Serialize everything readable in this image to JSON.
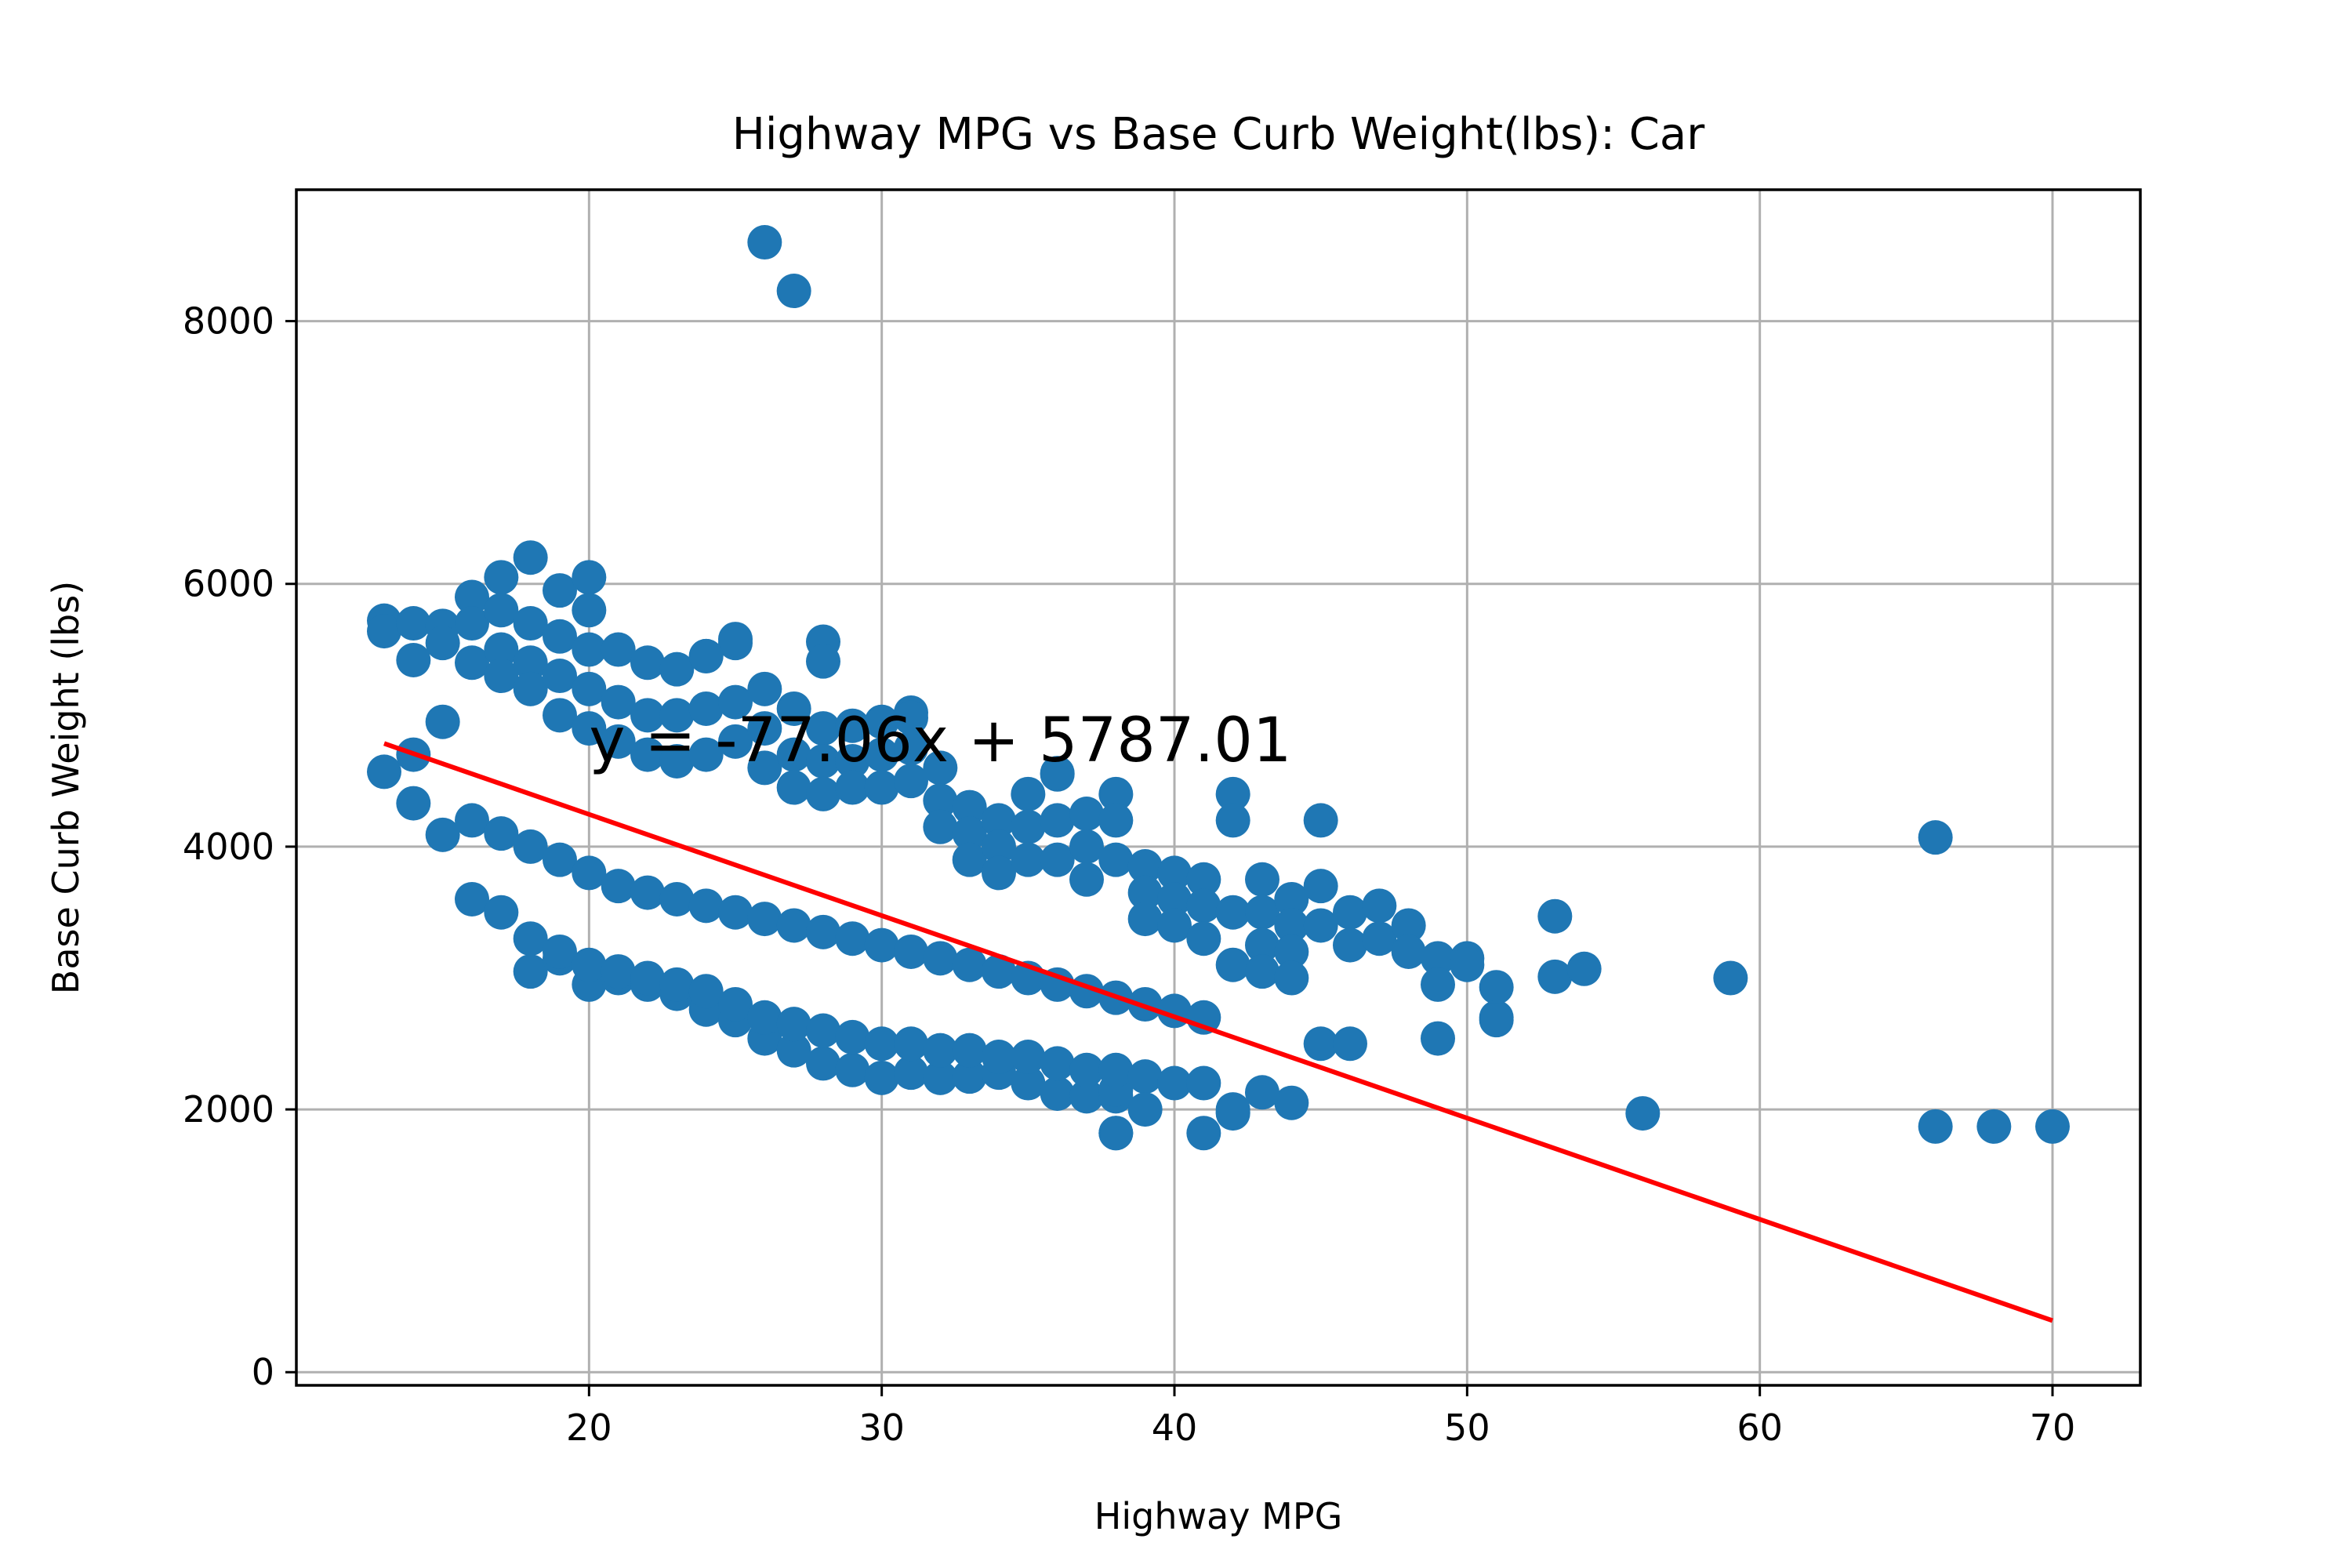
{
  "chart_data": {
    "type": "scatter",
    "title": "Highway MPG vs Base Curb Weight(lbs): Car",
    "xlabel": "Highway MPG",
    "ylabel": "Base Curb Weight (lbs)",
    "xlim": [
      10,
      73
    ],
    "ylim": [
      -100,
      9000
    ],
    "xticks": [
      20,
      30,
      40,
      50,
      60,
      70
    ],
    "yticks": [
      0,
      2000,
      4000,
      6000,
      8000
    ],
    "grid": true,
    "colors": {
      "points": "#1f77b4",
      "fit": "#ff0000"
    },
    "regression": {
      "slope": -77.06,
      "intercept": 5787.01,
      "x_range": [
        13,
        70
      ],
      "label": "y = -77.06x + 5787.01",
      "label_anchor": [
        20,
        4650
      ]
    },
    "series": [
      {
        "name": "Car",
        "x": [
          26,
          27,
          18,
          17,
          19,
          20,
          20,
          13,
          13,
          14,
          14,
          15,
          15,
          16,
          16,
          16,
          17,
          17,
          17,
          18,
          18,
          18,
          19,
          19,
          19,
          20,
          20,
          20,
          21,
          21,
          21,
          22,
          22,
          22,
          23,
          23,
          23,
          24,
          24,
          24,
          25,
          25,
          25,
          26,
          26,
          26,
          27,
          27,
          27,
          28,
          28,
          28,
          29,
          29,
          29,
          30,
          30,
          30,
          31,
          31,
          31,
          32,
          32,
          32,
          33,
          33,
          33,
          34,
          34,
          34,
          35,
          35,
          35,
          36,
          36,
          36,
          37,
          37,
          37,
          38,
          38,
          38,
          39,
          39,
          39,
          40,
          40,
          40,
          41,
          41,
          41,
          42,
          42,
          42,
          43,
          43,
          43,
          44,
          44,
          44,
          45,
          45,
          45,
          46,
          46,
          47,
          47,
          48,
          48,
          49,
          49,
          50,
          51,
          51,
          53,
          53,
          54,
          56,
          59,
          66,
          66,
          68,
          70,
          13,
          14,
          15,
          16,
          18,
          19,
          20,
          21,
          22,
          23,
          24,
          25,
          26,
          27,
          28,
          29,
          30,
          31,
          32,
          33,
          34,
          35,
          36,
          37,
          38,
          38,
          38,
          42,
          42,
          45,
          28,
          28,
          25,
          24,
          17,
          18,
          19,
          20,
          21,
          22,
          23,
          24,
          25,
          26,
          27,
          28,
          29,
          30,
          31,
          32,
          33,
          34,
          35,
          36,
          37,
          38,
          39,
          40,
          41,
          16,
          17,
          18,
          19,
          20,
          21,
          22,
          23,
          24,
          25,
          26,
          27,
          28,
          29,
          30,
          31,
          32,
          33,
          34,
          35,
          36,
          37,
          38,
          39,
          40,
          41,
          42,
          43,
          44,
          38,
          41,
          44,
          43,
          39,
          42,
          46,
          49,
          51,
          50,
          31,
          36,
          15,
          14
        ],
        "y": [
          8600,
          8230,
          6200,
          6050,
          5950,
          6050,
          5800,
          5720,
          5640,
          5700,
          5420,
          5680,
          5550,
          5900,
          5700,
          5400,
          5800,
          5500,
          5300,
          5700,
          5400,
          5200,
          5600,
          5300,
          5000,
          5500,
          5200,
          4900,
          5500,
          5100,
          4800,
          5400,
          5000,
          4700,
          5350,
          5000,
          4650,
          5450,
          5050,
          4700,
          5550,
          5100,
          4800,
          5200,
          4900,
          4600,
          5050,
          4700,
          4450,
          4900,
          4650,
          4400,
          4920,
          4650,
          4450,
          4950,
          4700,
          4450,
          5020,
          4750,
          4500,
          4600,
          4350,
          4150,
          4300,
          4100,
          3900,
          4200,
          4000,
          3800,
          4400,
          4150,
          3900,
          4550,
          4200,
          3900,
          4250,
          4000,
          3750,
          4400,
          4200,
          3900,
          3850,
          3650,
          3450,
          3800,
          3600,
          3400,
          3750,
          3550,
          3300,
          4400,
          4200,
          3500,
          3750,
          3500,
          3250,
          3600,
          3400,
          3200,
          4200,
          3700,
          3400,
          3500,
          3250,
          3550,
          3300,
          3400,
          3200,
          3150,
          2950,
          3150,
          2930,
          2700,
          3470,
          3010,
          3070,
          1970,
          3000,
          4070,
          1870,
          1870,
          1870,
          4570,
          4700,
          4090,
          3600,
          3050,
          3150,
          2950,
          3000,
          2950,
          2880,
          2760,
          2680,
          2540,
          2450,
          2350,
          2300,
          2240,
          2280,
          2240,
          2250,
          2280,
          2200,
          2120,
          2100,
          2100,
          1820,
          2150,
          1980,
          2000,
          2500,
          5560,
          5410,
          5580,
          5450,
          3500,
          3300,
          3200,
          3100,
          3050,
          3000,
          2950,
          2900,
          2800,
          2700,
          2650,
          2600,
          2550,
          2500,
          2500,
          2450,
          2450,
          2400,
          2400,
          2350,
          2300,
          2300,
          2250,
          2200,
          2200,
          4200,
          4100,
          4000,
          3900,
          3800,
          3700,
          3650,
          3600,
          3550,
          3500,
          3450,
          3400,
          3350,
          3300,
          3250,
          3200,
          3150,
          3100,
          3050,
          3000,
          2950,
          2900,
          2850,
          2800,
          2750,
          2700,
          3100,
          3050,
          3000,
          1820,
          1820,
          2050,
          2130,
          2000,
          1970,
          2500,
          2540,
          2680,
          3100,
          4980,
          4560,
          4950,
          4330
        ]
      }
    ]
  }
}
